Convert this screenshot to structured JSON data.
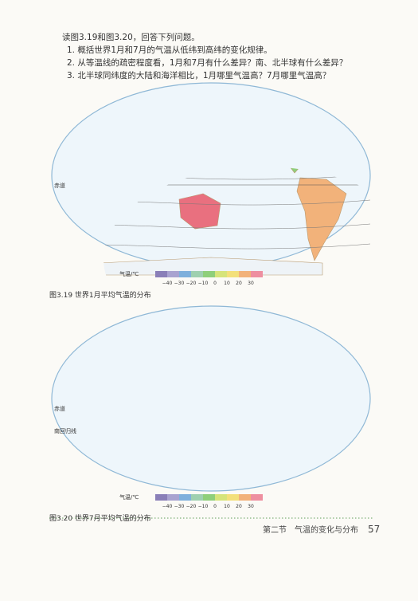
{
  "questions": {
    "intro": "读图3.19和图3.20，回答下列问题。",
    "items": [
      "1. 概括世界1月和7月的气温从低纬到高纬的变化规律。",
      "2. 从等温线的疏密程度看，1月和7月有什么差异？南、北半球有什么差异？",
      "3. 北半球同纬度的大陆和海洋相比，1月哪里气温高？7月哪里气温高？"
    ]
  },
  "maps": [
    {
      "caption": "图3.19 世界1月平均气温的分布",
      "labels": [
        "赤道"
      ],
      "legend": {
        "title": "气温/℃",
        "ticks": [
          "−40",
          "−30",
          "−20",
          "−10",
          "0",
          "10",
          "20",
          "30"
        ]
      }
    },
    {
      "caption": "图3.20 世界7月平均气温的分布",
      "labels": [
        "赤道",
        "南回归线"
      ],
      "legend": {
        "title": "气温/℃",
        "ticks": [
          "−40",
          "−30",
          "−20",
          "−10",
          "0",
          "10",
          "20",
          "30"
        ]
      }
    }
  ],
  "footer": {
    "section": "第二节　气温的变化与分布",
    "page": "57"
  }
}
